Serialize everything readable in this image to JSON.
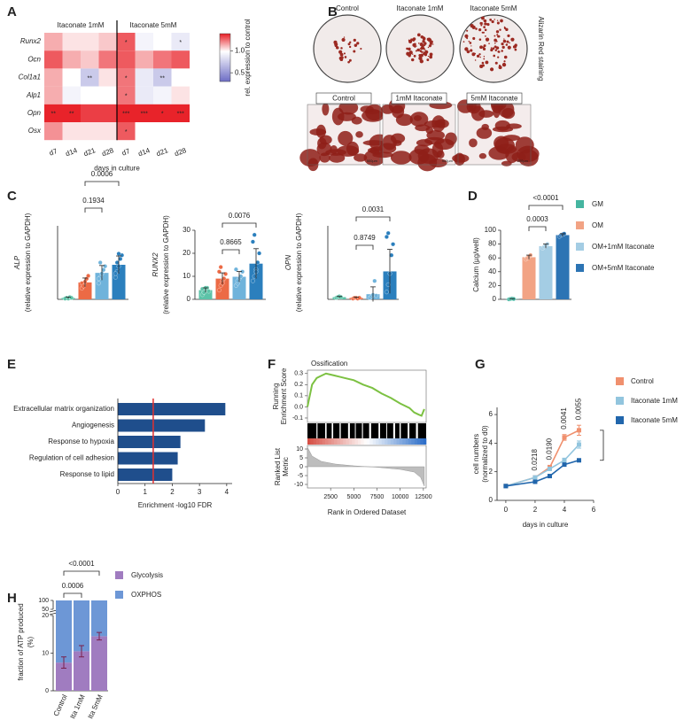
{
  "chart_data": [
    {
      "panel": "A",
      "type": "heatmap",
      "rows": [
        "Runx2",
        "Ocn",
        "Col1a1",
        "Alp1",
        "Opn",
        "Osx"
      ],
      "columns": [
        "d7",
        "d14",
        "d21",
        "d28",
        "d7",
        "d14",
        "d21",
        "d28"
      ],
      "groups": [
        "Itaconate 1mM",
        "Itaconate 5mM"
      ],
      "xlabel": "days in culture",
      "values": [
        [
          1.15,
          1.05,
          1.05,
          1.1,
          1.3,
          0.95,
          1.0,
          0.9
        ],
        [
          1.3,
          1.15,
          1.1,
          1.25,
          1.3,
          1.15,
          1.25,
          1.3
        ],
        [
          1.15,
          1.0,
          0.75,
          1.05,
          1.25,
          0.9,
          0.75,
          1.0
        ],
        [
          1.15,
          0.95,
          1.0,
          1.0,
          1.25,
          0.9,
          0.95,
          1.05
        ],
        [
          1.4,
          1.4,
          1.35,
          1.35,
          1.4,
          1.4,
          1.4,
          1.4
        ],
        [
          1.2,
          1.05,
          1.05,
          1.05,
          1.3,
          1.0,
          1.0,
          1.0
        ]
      ],
      "stars": [
        [
          null,
          null,
          null,
          null,
          "*",
          null,
          null,
          "*"
        ],
        [
          null,
          null,
          null,
          null,
          null,
          null,
          null,
          null
        ],
        [
          null,
          null,
          "**",
          null,
          "*",
          null,
          "**",
          null
        ],
        [
          null,
          null,
          null,
          null,
          "*",
          null,
          null,
          null
        ],
        [
          "**",
          "**",
          null,
          null,
          "***",
          "***",
          "*",
          "***"
        ],
        [
          null,
          null,
          null,
          null,
          "*",
          null,
          null,
          null
        ]
      ],
      "colorbar": {
        "label": "rel. expression to control",
        "lim": [
          0.3,
          1.4
        ],
        "center": 1,
        "ticks": [
          0.5,
          {
            "value": 1,
            "label": "1.0"
          }
        ],
        "colors": [
          "#6b6bc4",
          "#ffffff",
          "#e8232a"
        ]
      }
    },
    {
      "panel": "B",
      "type": "image",
      "top_labels": [
        "Control",
        "Itaconate 1mM",
        "Itaconate 5mM"
      ],
      "side_label": "Alizarin Red staining",
      "bottom_labels": [
        "Control",
        "1mM Itaconate",
        "5mM Itaconate"
      ],
      "scale_bar": "500µm"
    },
    {
      "panel": "C",
      "type": "bar",
      "ylabel": [
        "ALP",
        "(relative expression to GAPDH)"
      ],
      "ylim": [
        0,
        1
      ],
      "colors": [
        "#5cc3a8",
        "#ec6a45",
        "#6fb3db",
        "#2b7fbd"
      ],
      "values": [
        0.02,
        0.23,
        0.36,
        0.47
      ],
      "errors": [
        0.01,
        0.06,
        0.1,
        0.12
      ],
      "points": [
        [
          0.01,
          0.02,
          0.01,
          0.03,
          0.02,
          0.01
        ],
        [
          0.15,
          0.2,
          0.24,
          0.28,
          0.32,
          0.22,
          0.18
        ],
        [
          0.22,
          0.3,
          0.35,
          0.4,
          0.45,
          0.28,
          0.5
        ],
        [
          0.3,
          0.38,
          0.45,
          0.55,
          0.6,
          0.35,
          0.5,
          0.62
        ]
      ],
      "comparisons": [
        {
          "from": 1,
          "to": 2,
          "label": "0.1934"
        },
        {
          "from": 1,
          "to": 3,
          "label": "0.0006"
        }
      ]
    },
    {
      "type": "bar",
      "ylabel": [
        "RUNX2",
        "(relative expression to GAPDH)"
      ],
      "ylim": [
        0,
        30
      ],
      "yticks": [
        0,
        10,
        20,
        30
      ],
      "colors": [
        "#5cc3a8",
        "#ec6a45",
        "#6fb3db",
        "#2b7fbd"
      ],
      "values": [
        4,
        9,
        9.8,
        15.5
      ],
      "errors": [
        1,
        2.5,
        2.3,
        6.5
      ],
      "points": [
        [
          2,
          3,
          4,
          5,
          3.5,
          4.5,
          3,
          5
        ],
        [
          4,
          6,
          8,
          9,
          11,
          12,
          14,
          7
        ],
        [
          6,
          7,
          9,
          10,
          12,
          13,
          8
        ],
        [
          8,
          10,
          13,
          16,
          20,
          25,
          28,
          12
        ]
      ],
      "comparisons": [
        {
          "from": 1,
          "to": 2,
          "label": "0.8665"
        },
        {
          "from": 1,
          "to": 3,
          "label": "0.0076"
        }
      ]
    },
    {
      "type": "bar",
      "ylabel": [
        "OPN",
        "(relative expression to GAPDH)"
      ],
      "ylim": [
        0,
        1
      ],
      "colors": [
        "#5cc3a8",
        "#ec6a45",
        "#6fb3db",
        "#2b7fbd"
      ],
      "values": [
        0.03,
        0.02,
        0.07,
        0.38
      ],
      "errors": [
        0.01,
        0.01,
        0.1,
        0.3
      ],
      "points": [
        [
          0.02,
          0.03,
          0.04,
          0.03
        ],
        [
          0.01,
          0.02,
          0.02,
          0.01,
          0.02
        ],
        [
          0.02,
          0.04,
          0.06,
          0.25,
          0.05
        ],
        [
          0.1,
          0.2,
          0.35,
          0.6,
          0.75,
          0.85,
          0.9
        ]
      ],
      "comparisons": [
        {
          "from": 1,
          "to": 2,
          "label": "0.8749"
        },
        {
          "from": 1,
          "to": 3,
          "label": "0.0031"
        }
      ]
    },
    {
      "panel": "D",
      "type": "bar",
      "ylabel": [
        "Calcium (µg/well)"
      ],
      "ylim": [
        0,
        100
      ],
      "yticks": [
        0,
        20,
        40,
        60,
        80,
        100
      ],
      "colors": [
        "#45b5a0",
        "#f2a384",
        "#a4cde4",
        "#2c74b4"
      ],
      "legend": [
        "GM",
        "OM",
        "OM+1mM Itaconate",
        "OM+5mM Itaconate"
      ],
      "values": [
        0.5,
        61,
        77,
        93
      ],
      "errors": [
        0.5,
        3,
        3,
        2
      ],
      "points": [
        [
          0,
          0.5,
          1,
          0.5
        ],
        [
          58,
          60,
          62,
          64
        ],
        [
          74,
          76,
          78,
          80
        ],
        [
          91,
          93,
          94,
          95
        ]
      ],
      "comparisons": [
        {
          "from": 1,
          "to": 2,
          "label": "0.0003"
        },
        {
          "from": 1,
          "to": 3,
          "label": "<0.0001"
        }
      ]
    },
    {
      "panel": "E",
      "type": "hbar",
      "categories": [
        "Extracellular matrix organization",
        "Angiogenesis",
        "Response to hypoxia",
        "Regulation of cell adhesion",
        "Response to lipid"
      ],
      "values": [
        3.95,
        3.2,
        2.3,
        2.2,
        2.0
      ],
      "color": "#1f4e8c",
      "xlim": [
        0,
        4.2
      ],
      "xticks": [
        0,
        1,
        2,
        3,
        4
      ],
      "xlabel": "Enrichment -log10 FDR",
      "threshold": 1.3,
      "threshold_color": "#e03030"
    },
    {
      "panel": "F",
      "type": "gsea",
      "title": "Ossification",
      "ylabel": [
        "Running",
        "Enrichment Score"
      ],
      "ylabel2": [
        "Ranked List",
        "Metric"
      ],
      "xlabel": "Rank in Ordered Dataset",
      "xlim": [
        0,
        12800
      ],
      "xticks": [
        2500,
        5000,
        7500,
        10000,
        12500
      ],
      "ylim": [
        -0.14,
        0.33
      ],
      "yticks": [
        0.3,
        0.2,
        0.1,
        {
          "value": 0,
          "label": "0.0"
        },
        -0.1
      ],
      "y2lim": [
        -12,
        12
      ],
      "y2ticks": [
        10,
        5,
        0,
        -5,
        -10
      ],
      "color": "#7cc142",
      "x": [
        0,
        500,
        1000,
        1500,
        2000,
        2500,
        3000,
        4000,
        5000,
        6000,
        7000,
        8000,
        9000,
        10000,
        11000,
        11500,
        12000,
        12300,
        12500,
        12600
      ],
      "values": [
        0.0,
        0.2,
        0.26,
        0.28,
        0.3,
        0.29,
        0.28,
        0.26,
        0.24,
        0.2,
        0.17,
        0.12,
        0.08,
        0.03,
        -0.01,
        -0.05,
        -0.07,
        -0.08,
        -0.04,
        -0.02
      ],
      "metric_x": [
        0,
        500,
        1500,
        3000,
        5000,
        7500,
        10000,
        11500,
        12200,
        12600
      ],
      "metric": [
        11,
        6,
        3,
        1.5,
        0.5,
        -0.3,
        -1.5,
        -3,
        -6,
        -11
      ]
    },
    {
      "panel": "G",
      "type": "line",
      "x": [
        0,
        2,
        3,
        4,
        5
      ],
      "xlim": [
        -0.6,
        6
      ],
      "xticks": [
        0,
        2,
        4,
        6
      ],
      "ylim": [
        0,
        6.5
      ],
      "yticks": [
        0,
        2,
        4,
        6
      ],
      "xlabel": "days in culture",
      "ylabel": [
        "cell numbers",
        "(normalized to d0)"
      ],
      "series": [
        {
          "name": "Control",
          "color": "#f0906e",
          "values": [
            1,
            1.6,
            2.3,
            4.4,
            4.9
          ],
          "errors": [
            0,
            0.1,
            0.15,
            0.2,
            0.35
          ]
        },
        {
          "name": "Itaconate 1mM",
          "color": "#92c5de",
          "values": [
            1,
            1.6,
            2.2,
            2.8,
            3.9
          ],
          "errors": [
            0,
            0.1,
            0.1,
            0.15,
            0.25
          ]
        },
        {
          "name": "Itaconate 5mM",
          "color": "#2166ac",
          "values": [
            1,
            1.3,
            1.7,
            2.5,
            2.8
          ],
          "errors": [
            0,
            0.05,
            0.1,
            0.1,
            0.1
          ]
        }
      ],
      "annotations": [
        {
          "x": 2,
          "label": "0.0218"
        },
        {
          "x": 3,
          "label": "0.0190"
        },
        {
          "x": 4,
          "label": "0.0041"
        },
        {
          "x": 5,
          "label": "0.0055"
        }
      ]
    },
    {
      "panel": "H",
      "type": "stacked_bar",
      "categories": [
        "Control",
        "Ita 1mM",
        "Ita 5mM"
      ],
      "ylim": [
        0,
        100
      ],
      "ybreak": [
        20,
        50
      ],
      "yticks": [
        0,
        10,
        20,
        50,
        100
      ],
      "ylabel": [
        "fraction of ATP produced",
        "(%)"
      ],
      "error_color": "#7a1f4a",
      "series": [
        {
          "name": "Glycolysis",
          "color": "#a07cc0",
          "values": [
            7.5,
            10.5,
            14.5
          ],
          "errors": [
            1.5,
            1.5,
            1
          ]
        },
        {
          "name": "OXPHOS",
          "color": "#6d97d6",
          "values": [
            92.5,
            89.5,
            85.5
          ]
        }
      ],
      "comparisons": [
        {
          "from": 0,
          "to": 1,
          "label": "0.0006"
        },
        {
          "from": 0,
          "to": 2,
          "label": "<0.0001"
        }
      ]
    }
  ]
}
